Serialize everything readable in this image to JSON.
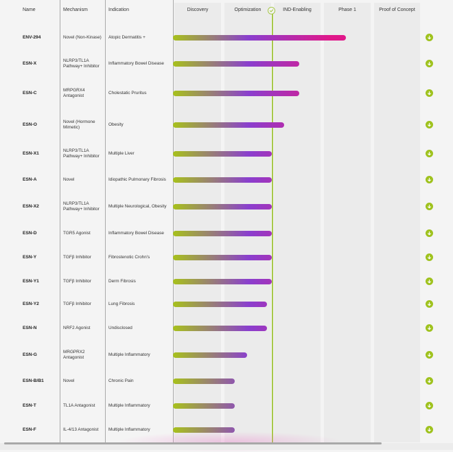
{
  "colors": {
    "bar_gradient": [
      "#a7c11b",
      "#8a3fce",
      "#e0188a"
    ],
    "accent_green": "#9fc21e"
  },
  "table": {
    "headers": {
      "name": "Name",
      "mechanism": "Mechanism",
      "indication": "Indication"
    },
    "phases": [
      "Discovery",
      "Optimization",
      "IND-Enabling",
      "Phase 1",
      "Proof of Concept"
    ],
    "current_phase_marker": "checkmark",
    "rows": [
      {
        "name": "ENV-294",
        "mechanism": "Novel (Non-Kinase)",
        "indication": "Atopic Dermatitis +",
        "progress": 0.7
      },
      {
        "name": "ESN-X",
        "mechanism": "NLRP3/TL1A Pathway+ Inhibitor",
        "indication": "Inflammatory Bowel Disease",
        "progress": 0.51
      },
      {
        "name": "ESN-C",
        "mechanism": "MRPGRX4 Antagonist",
        "indication": "Cholestatic Pruritus",
        "progress": 0.51
      },
      {
        "name": "ESN-O",
        "mechanism": "Novel (Hormone Mimetic)",
        "indication": "Obesity",
        "progress": 0.45
      },
      {
        "name": "ESN-X1",
        "mechanism": "NLRP3/TL1A Pathway+ Inhibitor",
        "indication": "Multiple Liver",
        "progress": 0.4
      },
      {
        "name": "ESN-A",
        "mechanism": "Novel",
        "indication": "Idiopathic Pulmonary Fibrosis",
        "progress": 0.4
      },
      {
        "name": "ESN-X2",
        "mechanism": "NLRP3/TL1A Pathway+ Inhibitor",
        "indication": "Multiple Neurological, Obesity",
        "progress": 0.4
      },
      {
        "name": "ESN-D",
        "mechanism": "TGR5 Agonist",
        "indication": "Inflammatory Bowel Disease",
        "progress": 0.4
      },
      {
        "name": "ESN-Y",
        "mechanism": "TGFβ Inhibitor",
        "indication": "Fibrostenotic Crohn's",
        "progress": 0.4
      },
      {
        "name": "ESN-Y1",
        "mechanism": "TGFβ Inhibitor",
        "indication": "Derm Fibrosis",
        "progress": 0.4
      },
      {
        "name": "ESN-Y2",
        "mechanism": "TGFβ Inhibitor",
        "indication": "Lung Fibrosis",
        "progress": 0.38
      },
      {
        "name": "ESN-N",
        "mechanism": "NRF2 Agonist",
        "indication": "Undisclosed",
        "progress": 0.38
      },
      {
        "name": "ESN-G",
        "mechanism": "MRGPRX2 Antagonist",
        "indication": "Multiple Inflammatory",
        "progress": 0.3
      },
      {
        "name": "ESN-B/B1",
        "mechanism": "Novel",
        "indication": "Chronic Pain",
        "progress": 0.25
      },
      {
        "name": "ESN-T",
        "mechanism": "TL1A Antagonist",
        "indication": "Multiple Inflammatory",
        "progress": 0.25
      },
      {
        "name": "ESN-F",
        "mechanism": "IL-4/13 Antagonist",
        "indication": "Multiple Inflammatory",
        "progress": 0.25
      }
    ]
  }
}
